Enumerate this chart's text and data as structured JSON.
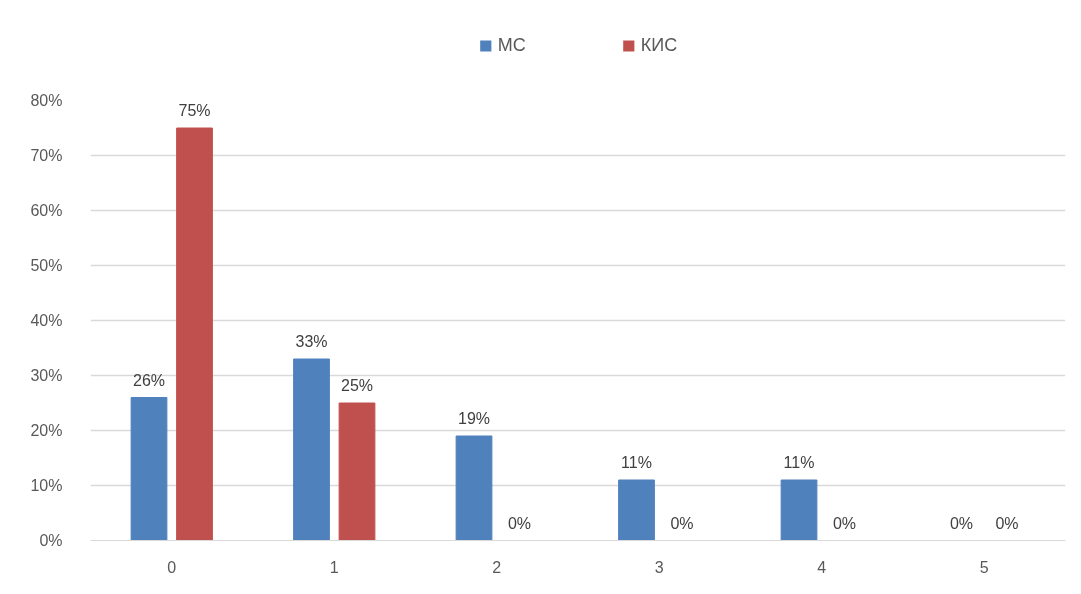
{
  "chart_data": {
    "type": "bar",
    "categories": [
      "0",
      "1",
      "2",
      "3",
      "4",
      "5"
    ],
    "series": [
      {
        "name": "МС",
        "color": "#4f81bd",
        "values": [
          26,
          33,
          19,
          11,
          11,
          0
        ],
        "value_labels": [
          "26%",
          "33%",
          "19%",
          "11%",
          "11%",
          "0%"
        ]
      },
      {
        "name": "КИС",
        "color": "#c0504d",
        "values": [
          75,
          25,
          0,
          0,
          0,
          0
        ],
        "value_labels": [
          "75%",
          "25%",
          "0%",
          "0%",
          "0%",
          "0%"
        ]
      }
    ],
    "ylim": [
      0,
      80
    ],
    "yticks": [
      {
        "value": 0,
        "label": "0%"
      },
      {
        "value": 10,
        "label": "10%"
      },
      {
        "value": 20,
        "label": "20%"
      },
      {
        "value": 30,
        "label": "30%"
      },
      {
        "value": 40,
        "label": "40%"
      },
      {
        "value": 50,
        "label": "50%"
      },
      {
        "value": 60,
        "label": "60%"
      },
      {
        "value": 70,
        "label": "70%"
      },
      {
        "value": 80,
        "label": "80%"
      }
    ],
    "grid": "y",
    "legend": "top"
  }
}
